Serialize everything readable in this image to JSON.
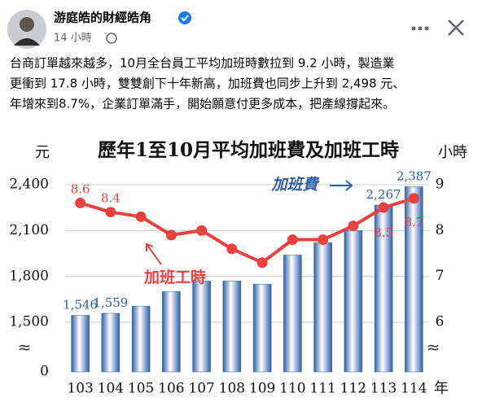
{
  "post": {
    "author": "游庭皓的財經皓角",
    "time": "14 小時",
    "body": [
      "台商訂單越來越多，10月全台員工平均加班時數拉到 9.2 小時，製造業",
      "更衝到 17.8 小時，雙雙創下十年新高，加班費也同步上升到 2,498 元、",
      "年增來到8.7%，企業訂單滿手，開始願意付更多成本，把產線撐起來。"
    ]
  },
  "chart_data": {
    "type": "bar_line",
    "title": "歷年1至10月平均加班費及加班工時",
    "y_unit": "元",
    "y2_unit": "小時",
    "x_unit": "年",
    "categories": [
      "103",
      "104",
      "105",
      "106",
      "107",
      "108",
      "109",
      "110",
      "111",
      "112",
      "113",
      "114"
    ],
    "series": [
      {
        "name": "加班費",
        "type": "bar",
        "color": "#2f5fa8",
        "values": [
          1546,
          1559,
          1606,
          1702,
          1770,
          1770,
          1750,
          1940,
          2020,
          2100,
          2267,
          2387
        ],
        "value_labels": [
          "1,546",
          "1,559",
          null,
          null,
          null,
          null,
          null,
          null,
          null,
          null,
          "2,267",
          "2,387"
        ]
      },
      {
        "name": "加班工時",
        "type": "line",
        "axis": "y2",
        "color": "#e8413f",
        "values": [
          8.6,
          8.4,
          8.3,
          7.9,
          8.0,
          7.6,
          7.3,
          7.8,
          7.8,
          8.1,
          8.5,
          8.7
        ],
        "value_labels": [
          "8.6",
          "8.4",
          null,
          null,
          null,
          null,
          null,
          null,
          null,
          null,
          "8.5",
          "8.7"
        ]
      }
    ],
    "ylim": [
      1176,
      2464
    ],
    "yticks": [
      0,
      {
        "value": 1500,
        "label": "1,500"
      },
      {
        "value": 1800,
        "label": "1,800"
      },
      {
        "value": 2100,
        "label": "2,100"
      },
      {
        "value": 2400,
        "label": "2,400"
      }
    ],
    "y2lim": [
      4.92,
      9.21
    ],
    "y2ticks": [
      6,
      7,
      8,
      9
    ],
    "axis_break": true,
    "grid": true
  }
}
